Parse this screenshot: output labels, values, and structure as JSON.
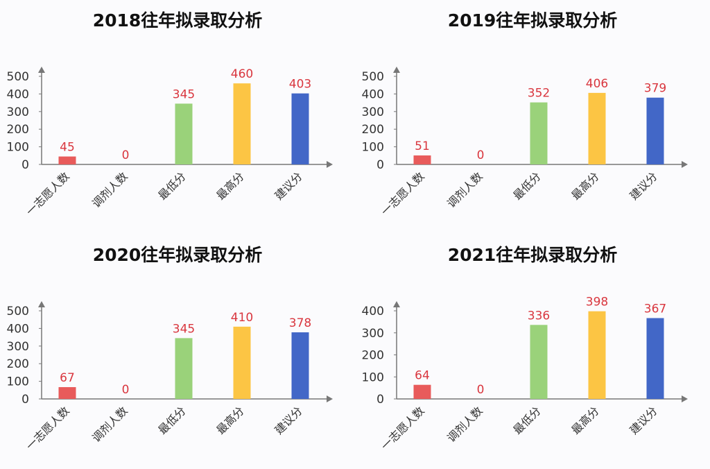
{
  "chart_data": [
    {
      "type": "bar",
      "title": "2018往年拟录取分析",
      "categories": [
        "一志愿人数",
        "调剂人数",
        "最低分",
        "最高分",
        "建议分"
      ],
      "values": [
        45,
        0,
        345,
        460,
        403
      ],
      "yticks": [
        0,
        100,
        200,
        300,
        400,
        500
      ],
      "ylim": [
        0,
        500
      ],
      "colors": [
        "#e85b5b",
        "#e85b5b",
        "#9ad27a",
        "#fcc544",
        "#4267c7"
      ],
      "label_color": "#d9363e",
      "grid": false
    },
    {
      "type": "bar",
      "title": "2019往年拟录取分析",
      "categories": [
        "一志愿人数",
        "调剂人数",
        "最低分",
        "最高分",
        "建议分"
      ],
      "values": [
        51,
        0,
        352,
        406,
        379
      ],
      "yticks": [
        0,
        100,
        200,
        300,
        400,
        500
      ],
      "ylim": [
        0,
        500
      ],
      "colors": [
        "#e85b5b",
        "#e85b5b",
        "#9ad27a",
        "#fcc544",
        "#4267c7"
      ],
      "label_color": "#d9363e",
      "grid": false
    },
    {
      "type": "bar",
      "title": "2020往年拟录取分析",
      "categories": [
        "一志愿人数",
        "调剂人数",
        "最低分",
        "最高分",
        "建议分"
      ],
      "values": [
        67,
        0,
        345,
        410,
        378
      ],
      "yticks": [
        0,
        100,
        200,
        300,
        400,
        500
      ],
      "ylim": [
        0,
        500
      ],
      "colors": [
        "#e85b5b",
        "#e85b5b",
        "#9ad27a",
        "#fcc544",
        "#4267c7"
      ],
      "label_color": "#d9363e",
      "grid": false
    },
    {
      "type": "bar",
      "title": "2021往年拟录取分析",
      "categories": [
        "一志愿人数",
        "调剂人数",
        "最低分",
        "最高分",
        "建议分"
      ],
      "values": [
        64,
        0,
        336,
        398,
        367
      ],
      "yticks": [
        0,
        100,
        200,
        300,
        400
      ],
      "ylim": [
        0,
        400
      ],
      "colors": [
        "#e85b5b",
        "#e85b5b",
        "#9ad27a",
        "#fcc544",
        "#4267c7"
      ],
      "label_color": "#d9363e",
      "grid": false
    }
  ]
}
